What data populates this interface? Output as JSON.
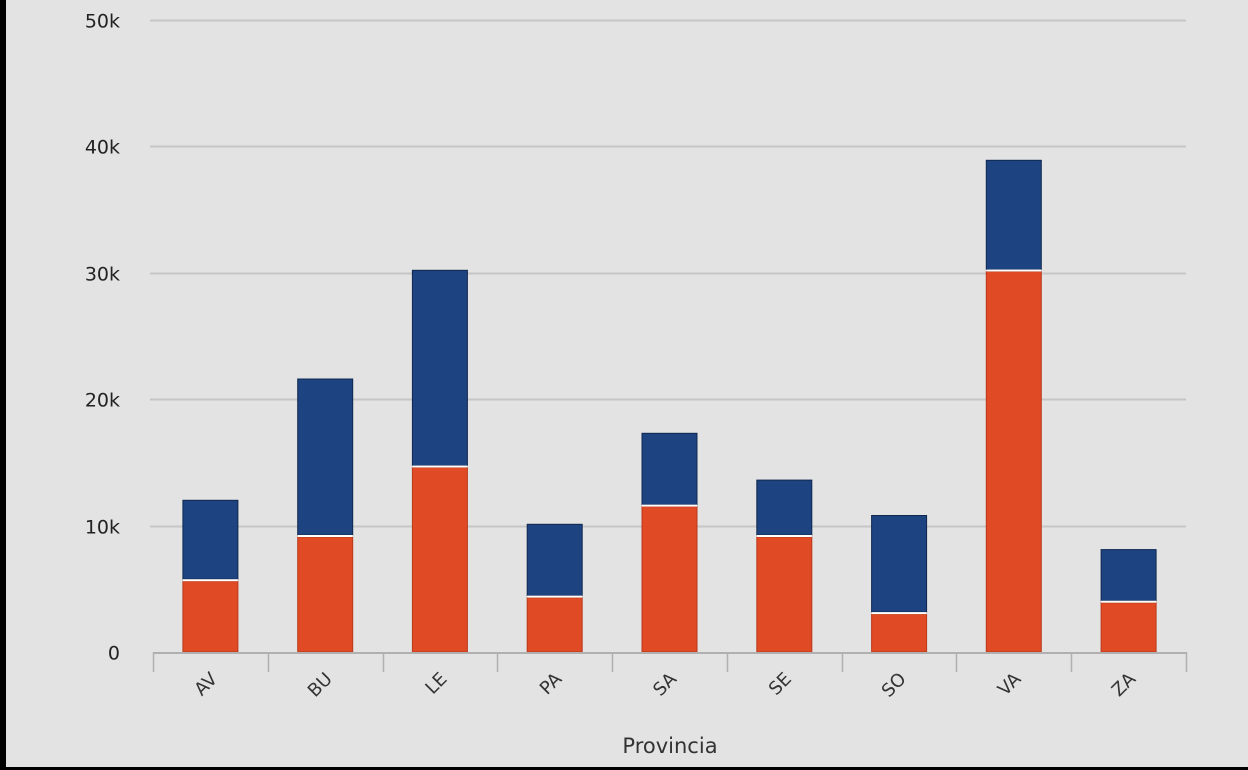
{
  "chart_data": {
    "type": "bar",
    "stacked": true,
    "title": "",
    "xlabel": "Provincia",
    "ylabel": "",
    "categories": [
      "AV",
      "BU",
      "LE",
      "PA",
      "SA",
      "SE",
      "SO",
      "VA",
      "ZA"
    ],
    "series": [
      {
        "name": "",
        "color": "#e04a25",
        "values": [
          5600,
          9100,
          14600,
          4300,
          11500,
          9100,
          3000,
          30100,
          3900
        ]
      },
      {
        "name": "",
        "color": "#1d4380",
        "values": [
          6400,
          12500,
          15600,
          5800,
          5800,
          4500,
          7800,
          8800,
          4200
        ]
      }
    ],
    "ylim": [
      0,
      50000
    ],
    "yticks": [
      0,
      10000,
      20000,
      30000,
      40000,
      50000
    ],
    "ytick_labels": [
      "0",
      "10k",
      "20k",
      "30k",
      "40k",
      "50k"
    ],
    "grid": true,
    "legend": "none"
  },
  "colors": {
    "background": "#e3e3e3",
    "grid": "#c6c6c6",
    "axis": "#b0b0b0"
  }
}
